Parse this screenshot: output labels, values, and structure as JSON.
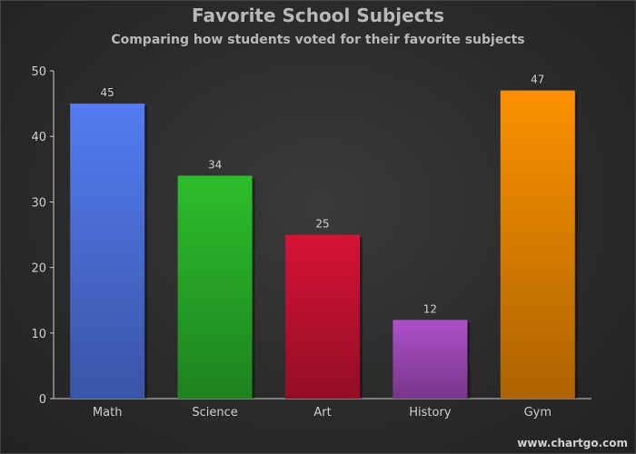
{
  "watermark": "www.chartgo.com",
  "chart_data": {
    "type": "bar",
    "title": "Favorite School Subjects",
    "subtitle": "Comparing how students voted for their favorite subjects",
    "xlabel": "",
    "ylabel": "",
    "categories": [
      "Math",
      "Science",
      "Art",
      "History",
      "Gym"
    ],
    "values": [
      45,
      34,
      25,
      12,
      47
    ],
    "data_labels": [
      "45",
      "34",
      "25",
      "12",
      "47"
    ],
    "colors": [
      "#4f76e6",
      "#2ab52a",
      "#cc1234",
      "#a64cc0",
      "#f08a00"
    ],
    "ylim": [
      0,
      50
    ],
    "yticks": [
      "0",
      "10",
      "20",
      "30",
      "40",
      "50"
    ],
    "grid": false,
    "legend": "none"
  }
}
